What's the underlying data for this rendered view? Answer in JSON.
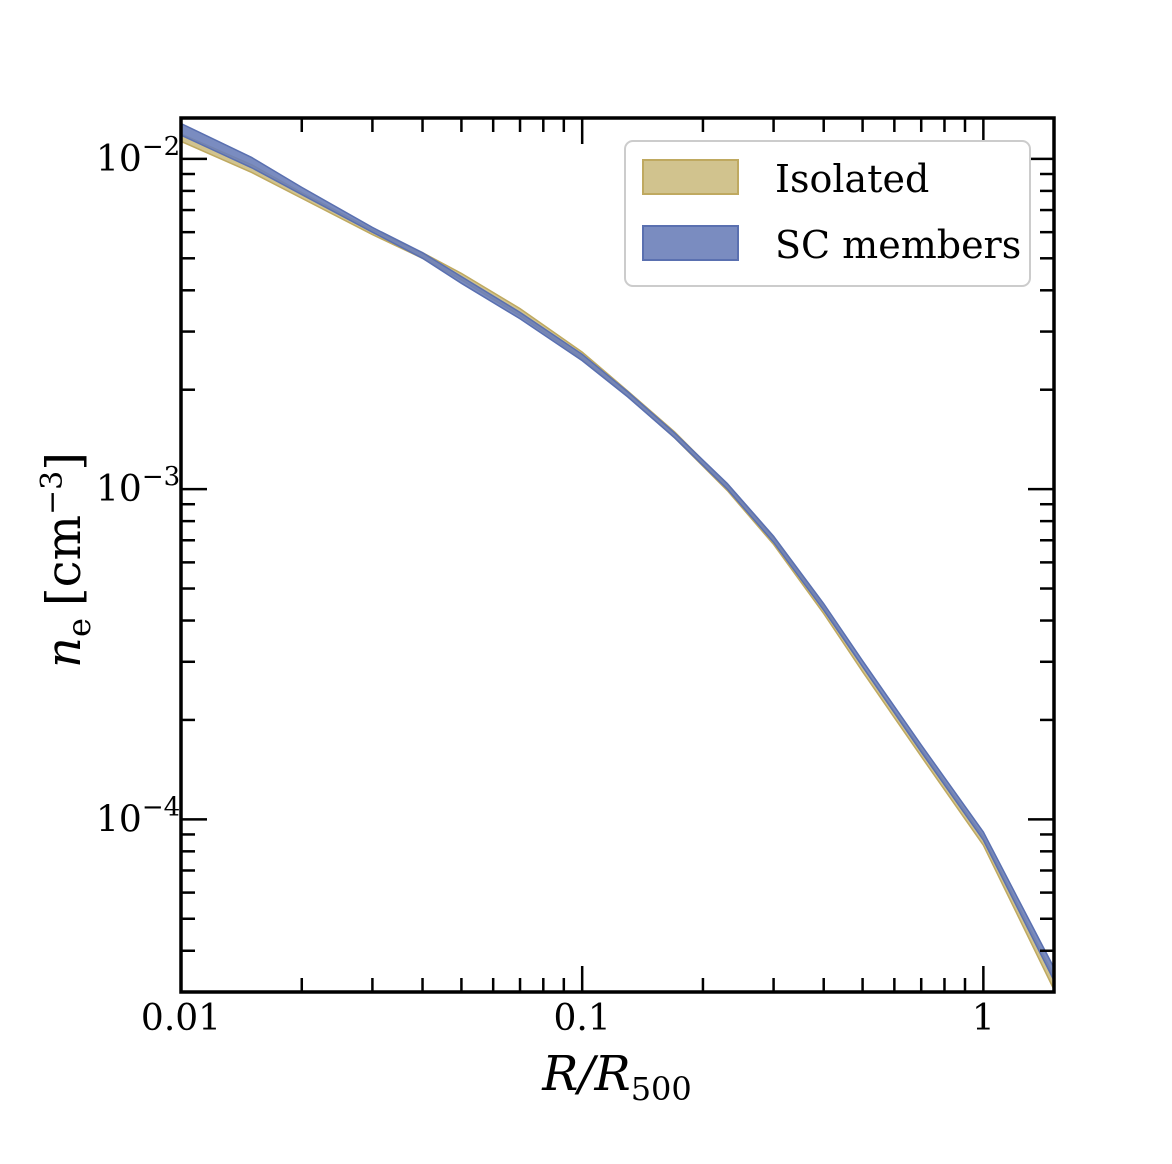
{
  "chart_data": {
    "type": "area",
    "title": "",
    "xlabel": "R/R500",
    "xlabel_main": "R/R",
    "xlabel_sub": "500",
    "ylabel": "n_e [cm^-3]",
    "ylabel_main": "n",
    "ylabel_sub": "e",
    "ylabel_unit": "[cm",
    "ylabel_unit_exp": "−3",
    "ylabel_unit_close": "]",
    "xscale": "log",
    "yscale": "log",
    "xlim": [
      0.01,
      1.5
    ],
    "ylim": [
      3e-05,
      0.0133
    ],
    "x_ticks": [
      {
        "value": 0.01,
        "label": "0.01"
      },
      {
        "value": 0.1,
        "label": "0.1"
      },
      {
        "value": 1,
        "label": "1"
      }
    ],
    "y_ticks": [
      {
        "value": 0.01,
        "base": "10",
        "exp": "−2"
      },
      {
        "value": 0.001,
        "base": "10",
        "exp": "−3"
      },
      {
        "value": 0.0001,
        "base": "10",
        "exp": "−4"
      }
    ],
    "legend_position": "upper right",
    "series": [
      {
        "name": "Isolated",
        "color": "#c9b87a",
        "edge_color": "#bfa960",
        "x": [
          0.01,
          0.015,
          0.02,
          0.03,
          0.04,
          0.05,
          0.07,
          0.1,
          0.13,
          0.17,
          0.23,
          0.3,
          0.4,
          0.5,
          0.7,
          1.0,
          1.5
        ],
        "lower": [
          0.0113,
          0.0091,
          0.0076,
          0.0059,
          0.005,
          0.0043,
          0.00335,
          0.00248,
          0.00191,
          0.00143,
          0.00099,
          0.00068,
          0.00042,
          0.00028,
          0.000155,
          8.35e-05,
          3.05e-05
        ],
        "upper": [
          0.0119,
          0.0096,
          0.0079,
          0.0061,
          0.0052,
          0.0045,
          0.00352,
          0.0026,
          0.00198,
          0.00149,
          0.00103,
          0.00071,
          0.00044,
          0.00029,
          0.000163,
          8.85e-05,
          3.35e-05
        ]
      },
      {
        "name": "SC members",
        "color": "#6b7fb9",
        "edge_color": "#5a70b0",
        "x": [
          0.01,
          0.015,
          0.02,
          0.03,
          0.04,
          0.05,
          0.07,
          0.1,
          0.13,
          0.17,
          0.23,
          0.3,
          0.4,
          0.5,
          0.7,
          1.0,
          1.5
        ],
        "lower": [
          0.0118,
          0.0094,
          0.0078,
          0.006,
          0.005,
          0.0042,
          0.00328,
          0.00245,
          0.0019,
          0.00143,
          0.001,
          0.00069,
          0.00043,
          0.00029,
          0.00016,
          8.65e-05,
          3.25e-05
        ],
        "upper": [
          0.0128,
          0.0101,
          0.0082,
          0.0062,
          0.0052,
          0.0044,
          0.00343,
          0.00256,
          0.00197,
          0.00148,
          0.00104,
          0.00072,
          0.00045,
          0.000302,
          0.000168,
          9.15e-05,
          3.55e-05
        ]
      }
    ]
  }
}
